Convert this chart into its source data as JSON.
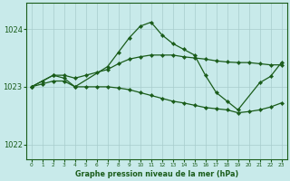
{
  "title": "Graphe pression niveau de la mer (hPa)",
  "bg_color": "#c8eaea",
  "grid_color": "#a8cccc",
  "line_color": "#1a5c1a",
  "xlim": [
    -0.5,
    23.5
  ],
  "ylim": [
    1021.75,
    1024.45
  ],
  "yticks": [
    1022,
    1023,
    1024
  ],
  "xticks": [
    0,
    1,
    2,
    3,
    4,
    5,
    6,
    7,
    8,
    9,
    10,
    11,
    12,
    13,
    14,
    15,
    16,
    17,
    18,
    19,
    20,
    21,
    22,
    23
  ],
  "series": [
    {
      "x": [
        0,
        2,
        3,
        4,
        7,
        8,
        9,
        10,
        11,
        12,
        13,
        14,
        15,
        16,
        17,
        18,
        19,
        21,
        22,
        23
      ],
      "y": [
        1023.0,
        1023.2,
        1023.15,
        1023.0,
        1023.35,
        1023.6,
        1023.85,
        1024.05,
        1024.12,
        1023.9,
        1023.75,
        1023.65,
        1023.55,
        1023.2,
        1022.9,
        1022.75,
        1022.6,
        1023.07,
        1023.18,
        1023.42
      ]
    },
    {
      "x": [
        0,
        1,
        2,
        3,
        4,
        5,
        6,
        7,
        8,
        9,
        10,
        11,
        12,
        13,
        14,
        15,
        16,
        17,
        18,
        19,
        20,
        21,
        22,
        23
      ],
      "y": [
        1023.0,
        1023.1,
        1023.2,
        1023.2,
        1023.15,
        1023.2,
        1023.25,
        1023.3,
        1023.4,
        1023.48,
        1023.52,
        1023.55,
        1023.55,
        1023.55,
        1023.52,
        1023.5,
        1023.48,
        1023.45,
        1023.43,
        1023.42,
        1023.42,
        1023.4,
        1023.38,
        1023.38
      ]
    },
    {
      "x": [
        0,
        1,
        2,
        3,
        4,
        5,
        6,
        7,
        8,
        9,
        10,
        11,
        12,
        13,
        14,
        15,
        16,
        17,
        18,
        19,
        20,
        21,
        22,
        23
      ],
      "y": [
        1023.0,
        1023.05,
        1023.1,
        1023.1,
        1023.0,
        1023.0,
        1023.0,
        1023.0,
        1022.98,
        1022.95,
        1022.9,
        1022.85,
        1022.8,
        1022.75,
        1022.72,
        1022.68,
        1022.64,
        1022.62,
        1022.6,
        1022.55,
        1022.57,
        1022.6,
        1022.65,
        1022.72
      ]
    }
  ]
}
